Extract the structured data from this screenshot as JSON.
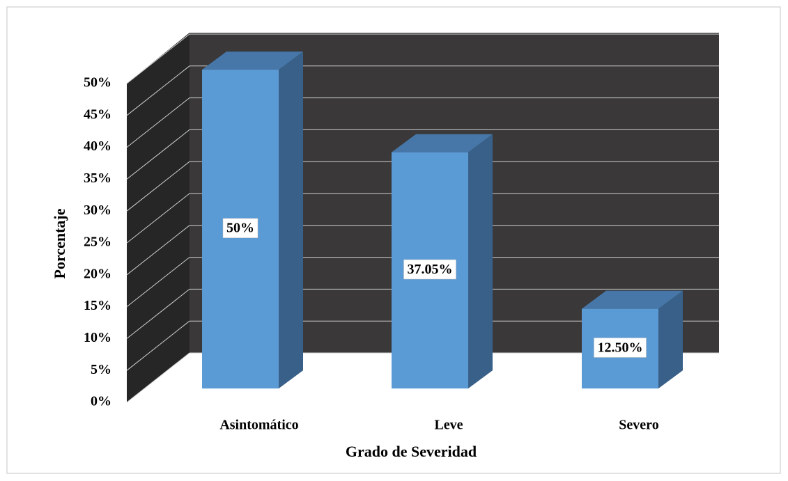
{
  "chart_data": {
    "type": "bar3d",
    "x_label": "Grado de Severidad",
    "y_label": "Porcentaje",
    "categories": [
      "Asintomático",
      "Leve",
      "Severo"
    ],
    "values": [
      50,
      37.05,
      12.5
    ],
    "value_labels": [
      "50%",
      "37.05%",
      "12.50%"
    ],
    "color": "#5b9bd5",
    "ylim": [
      0,
      50
    ],
    "yticks": [
      {
        "value": 0,
        "label": "0%"
      },
      {
        "value": 5,
        "label": "5%"
      },
      {
        "value": 10,
        "label": "10%"
      },
      {
        "value": 15,
        "label": "15%"
      },
      {
        "value": 20,
        "label": "20%"
      },
      {
        "value": 25,
        "label": "25%"
      },
      {
        "value": 30,
        "label": "30%"
      },
      {
        "value": 35,
        "label": "35%"
      },
      {
        "value": 40,
        "label": "40%"
      },
      {
        "value": 45,
        "label": "45%"
      },
      {
        "value": 50,
        "label": "50%"
      }
    ],
    "grid": true
  }
}
